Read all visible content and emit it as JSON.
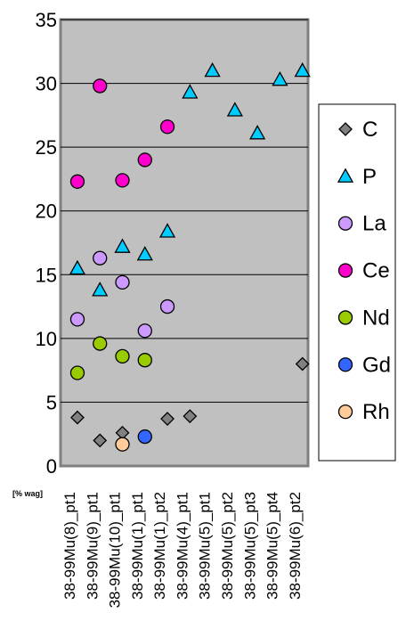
{
  "chart_data": {
    "type": "scatter",
    "unit_label": "[% wag]",
    "categories": [
      "38-99Mu(8)_pt1",
      "38-99Mu(9)_pt1",
      "38-99Mu(10)_pt1",
      "38-99Mu(1)_pt1",
      "38-99Mu(1)_pt2",
      "38-99Mu(4)_pt1",
      "38-99Mu(5)_pt1",
      "38-99Mu(5)_pt2",
      "38-99Mu(5)_pt3",
      "38-99Mu(5)_pt4",
      "38-99Mu(6)_pt2"
    ],
    "ylim": [
      0,
      35
    ],
    "yticks": [
      0,
      5,
      10,
      15,
      20,
      25,
      30,
      35
    ],
    "grid": true,
    "legend_position": "right",
    "series": [
      {
        "name": "C",
        "marker": "diamond",
        "color": "#808080",
        "points": [
          [
            0,
            3.8
          ],
          [
            1,
            2.0
          ],
          [
            2,
            2.6
          ],
          [
            4,
            3.7
          ],
          [
            5,
            3.9
          ],
          [
            10,
            8.0
          ]
        ]
      },
      {
        "name": "P",
        "marker": "triangle",
        "color": "#00ccff",
        "points": [
          [
            0,
            15.5
          ],
          [
            1,
            13.8
          ],
          [
            2,
            17.2
          ],
          [
            3,
            16.6
          ],
          [
            4,
            18.4
          ],
          [
            5,
            29.3
          ],
          [
            6,
            31.0
          ],
          [
            7,
            27.9
          ],
          [
            8,
            26.1
          ],
          [
            9,
            30.3
          ],
          [
            10,
            31.0
          ]
        ]
      },
      {
        "name": "La",
        "marker": "circle",
        "color": "#cc99ff",
        "points": [
          [
            0,
            11.5
          ],
          [
            1,
            16.3
          ],
          [
            2,
            14.4
          ],
          [
            3,
            10.6
          ],
          [
            4,
            12.5
          ]
        ]
      },
      {
        "name": "Ce",
        "marker": "circle",
        "color": "#ff00cc",
        "points": [
          [
            0,
            22.3
          ],
          [
            1,
            29.8
          ],
          [
            2,
            22.4
          ],
          [
            3,
            24.0
          ],
          [
            4,
            26.6
          ]
        ]
      },
      {
        "name": "Nd",
        "marker": "circle",
        "color": "#99cc00",
        "points": [
          [
            0,
            7.3
          ],
          [
            1,
            9.6
          ],
          [
            2,
            8.6
          ],
          [
            3,
            8.3
          ]
        ]
      },
      {
        "name": "Gd",
        "marker": "circle",
        "color": "#3366ff",
        "points": [
          [
            3,
            2.3
          ]
        ]
      },
      {
        "name": "Rh",
        "marker": "circle",
        "color": "#ffcc99",
        "points": [
          [
            2,
            1.7
          ]
        ]
      }
    ]
  }
}
